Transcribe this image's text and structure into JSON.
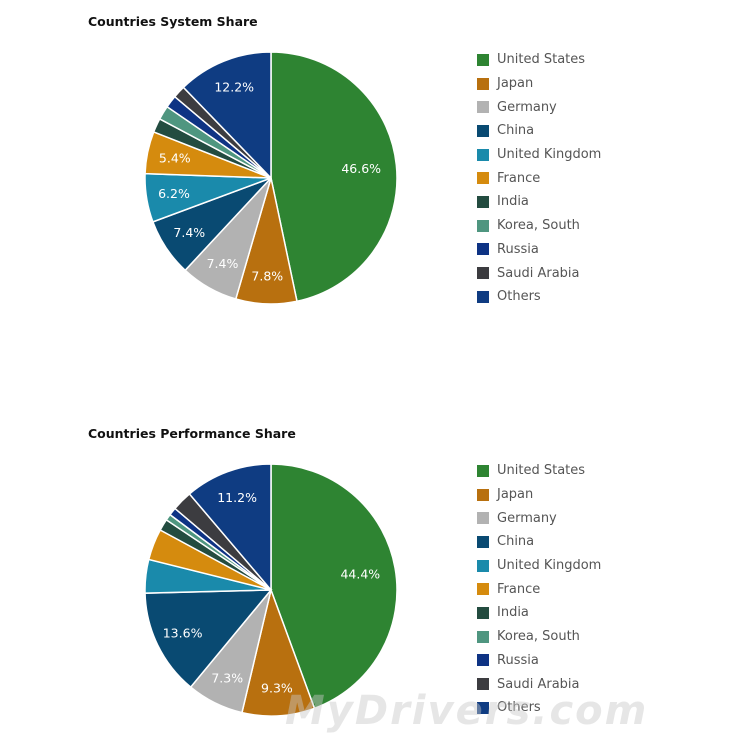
{
  "colors": {
    "United States": "#2e8432",
    "Japan": "#b8700f",
    "Germany": "#b2b2b2",
    "China": "#094a72",
    "United Kingdom": "#1a8aab",
    "France": "#d58b0e",
    "India": "#234c40",
    "Korea, South": "#4f9680",
    "Russia": "#0e3384",
    "Saudi Arabia": "#3c3c40",
    "Others": "#0f3c82"
  },
  "watermark": "MyDrivers.com",
  "chart_data": [
    {
      "type": "pie",
      "title": "Countries System Share",
      "legend_position": "right",
      "labels": [
        "United States",
        "Japan",
        "Germany",
        "China",
        "United Kingdom",
        "France",
        "India",
        "Korea, South",
        "Russia",
        "Saudi Arabia",
        "Others"
      ],
      "values": [
        46.6,
        7.8,
        7.4,
        7.4,
        6.2,
        5.4,
        1.8,
        1.8,
        1.6,
        1.6,
        12.2
      ],
      "data_labels": [
        "46.6%",
        "7.8%",
        "7.4%",
        "7.4%",
        "6.2%",
        "5.4%",
        "",
        "",
        "",
        "",
        "12.2%"
      ]
    },
    {
      "type": "pie",
      "title": "Countries Performance Share",
      "legend_position": "right",
      "labels": [
        "United States",
        "Japan",
        "Germany",
        "China",
        "United Kingdom",
        "France",
        "India",
        "Korea, South",
        "Russia",
        "Saudi Arabia",
        "Others"
      ],
      "values": [
        44.4,
        9.3,
        7.3,
        13.6,
        4.3,
        4.0,
        1.5,
        0.8,
        1.0,
        2.6,
        11.2
      ],
      "data_labels": [
        "44.4%",
        "9.3%",
        "7.3%",
        "13.6%",
        "",
        "",
        "",
        "",
        "",
        "",
        "11.2%"
      ]
    }
  ]
}
